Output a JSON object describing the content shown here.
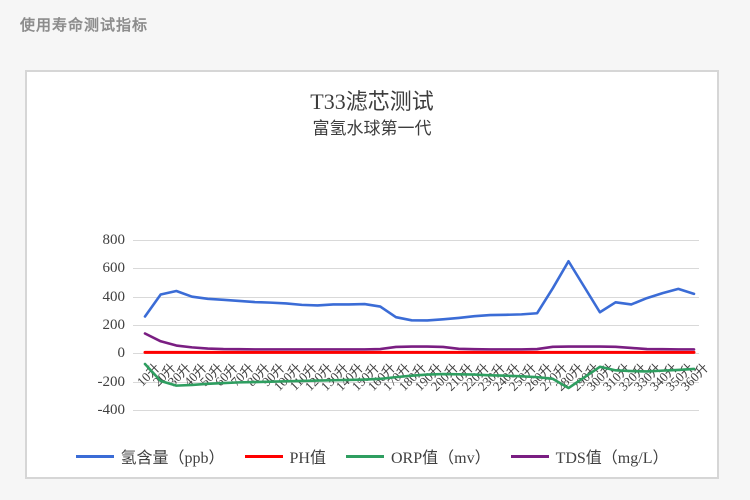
{
  "page": {
    "header": "使用寿命测试指标"
  },
  "chart_data": {
    "type": "line",
    "title": "T33滤芯测试",
    "subtitle": "富氢水球第一代",
    "xlabel": "",
    "ylabel": "",
    "ylim": [
      -400,
      800
    ],
    "yticks": [
      800,
      600,
      400,
      200,
      0,
      -200,
      -400
    ],
    "grid": "horizontal",
    "legend_position": "bottom",
    "categories": [
      "10升",
      "20升",
      "30升",
      "40升",
      "50升",
      "60升",
      "70升",
      "80升",
      "90升",
      "100升",
      "110升",
      "120升",
      "130升",
      "140升",
      "150升",
      "160升",
      "170升",
      "180升",
      "190升",
      "200升",
      "210升",
      "220升",
      "230升",
      "240升",
      "250升",
      "260升",
      "270升",
      "280升",
      "290升",
      "300升",
      "310升",
      "320升",
      "330升",
      "340升",
      "350升",
      "360升"
    ],
    "series": [
      {
        "name": "氢含量（ppb）",
        "color": "#3b6cd6",
        "values": [
          260,
          415,
          440,
          400,
          385,
          378,
          370,
          362,
          358,
          352,
          342,
          338,
          345,
          345,
          348,
          330,
          255,
          233,
          232,
          240,
          250,
          262,
          270,
          272,
          275,
          283,
          460,
          650,
          470,
          290,
          360,
          345,
          390,
          425,
          455,
          420
        ]
      },
      {
        "name": "PH值",
        "color": "#fe0000",
        "values": [
          7,
          7,
          7,
          7,
          7,
          7,
          7,
          7,
          7,
          7,
          7,
          7,
          7,
          7,
          7,
          7,
          7,
          7,
          7,
          7,
          7,
          7,
          7,
          7,
          7,
          7,
          7,
          7,
          7,
          7,
          7,
          7,
          7,
          7,
          7,
          7
        ]
      },
      {
        "name": "ORP值（mv）",
        "color": "#2e9e60",
        "values": [
          -75,
          -195,
          -228,
          -223,
          -215,
          -210,
          -205,
          -203,
          -200,
          -197,
          -195,
          -192,
          -190,
          -188,
          -185,
          -180,
          -168,
          -158,
          -150,
          -146,
          -148,
          -150,
          -155,
          -158,
          -162,
          -168,
          -180,
          -245,
          -170,
          -95,
          -120,
          -125,
          -128,
          -122,
          -117,
          -110
        ]
      },
      {
        "name": "TDS值（mg/L）",
        "color": "#7a1e82",
        "values": [
          140,
          85,
          55,
          42,
          34,
          30,
          29,
          28,
          28,
          28,
          28,
          28,
          28,
          28,
          28,
          30,
          45,
          48,
          48,
          45,
          32,
          29,
          28,
          28,
          28,
          30,
          46,
          48,
          48,
          48,
          46,
          38,
          30,
          29,
          28,
          28
        ]
      }
    ]
  }
}
